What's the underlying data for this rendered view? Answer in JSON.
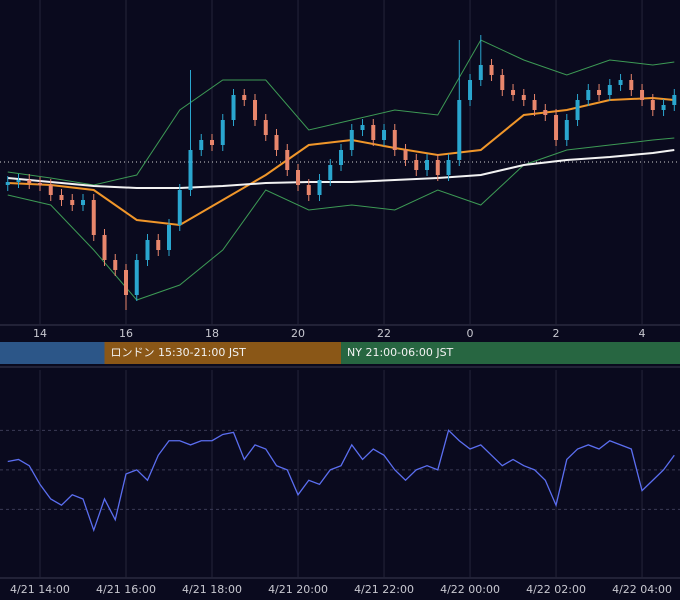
{
  "chart_data": [
    {
      "type": "candlestick",
      "ylim": [
        0,
        325
      ],
      "xlim": [
        -0.72,
        62.53
      ],
      "xticks": [
        {
          "value": 3,
          "label": "14"
        },
        {
          "value": 11,
          "label": "16"
        },
        {
          "value": 19,
          "label": "18"
        },
        {
          "value": 27,
          "label": "20"
        },
        {
          "value": 35,
          "label": "22"
        },
        {
          "value": 43,
          "label": "0"
        },
        {
          "value": 51,
          "label": "2"
        },
        {
          "value": 59,
          "label": "4"
        }
      ],
      "grid": true,
      "up_color": "#2aa6cf",
      "down_color": "#e8866c",
      "open": [
        140,
        143,
        145,
        142,
        140,
        130,
        125,
        120,
        125,
        90,
        65,
        55,
        30,
        65,
        85,
        75,
        100,
        135,
        175,
        185,
        180,
        205,
        230,
        225,
        205,
        190,
        175,
        155,
        140,
        130,
        145,
        160,
        175,
        195,
        200,
        185,
        195,
        175,
        165,
        155,
        165,
        150,
        165,
        225,
        245,
        260,
        250,
        235,
        230,
        225,
        215,
        210,
        185,
        205,
        225,
        235,
        230,
        240,
        245,
        235,
        225,
        215,
        220
      ],
      "high": [
        149,
        151,
        151,
        148,
        146,
        136,
        131,
        131,
        131,
        96,
        71,
        61,
        71,
        91,
        91,
        106,
        141,
        255,
        191,
        191,
        211,
        236,
        236,
        231,
        211,
        196,
        181,
        161,
        146,
        151,
        166,
        181,
        201,
        206,
        206,
        201,
        201,
        181,
        171,
        171,
        171,
        171,
        285,
        251,
        290,
        266,
        256,
        241,
        236,
        231,
        221,
        216,
        211,
        231,
        241,
        241,
        246,
        251,
        251,
        241,
        231,
        226,
        236
      ],
      "low": [
        134,
        137,
        136,
        134,
        124,
        119,
        114,
        114,
        84,
        59,
        49,
        15,
        24,
        59,
        69,
        69,
        94,
        129,
        169,
        174,
        174,
        199,
        219,
        199,
        184,
        169,
        149,
        134,
        124,
        124,
        139,
        154,
        169,
        189,
        179,
        179,
        169,
        159,
        149,
        149,
        144,
        144,
        159,
        219,
        239,
        244,
        229,
        224,
        219,
        209,
        204,
        179,
        179,
        199,
        219,
        224,
        224,
        234,
        229,
        219,
        209,
        209,
        214
      ],
      "close": [
        143,
        145,
        142,
        140,
        130,
        125,
        120,
        125,
        90,
        65,
        55,
        30,
        65,
        85,
        75,
        100,
        135,
        175,
        185,
        180,
        205,
        230,
        225,
        205,
        190,
        175,
        155,
        140,
        130,
        145,
        160,
        175,
        195,
        200,
        185,
        195,
        175,
        165,
        155,
        165,
        150,
        165,
        225,
        245,
        260,
        250,
        235,
        230,
        225,
        215,
        210,
        185,
        205,
        225,
        235,
        230,
        240,
        245,
        235,
        225,
        215,
        220,
        230
      ],
      "overlay_x": [
        0,
        4,
        8,
        12,
        16,
        20,
        24,
        28,
        32,
        36,
        40,
        44,
        48,
        52,
        56,
        60,
        62
      ],
      "overlays": [
        {
          "color": "#3d9a55",
          "values": [
            153,
            147,
            140,
            150,
            215,
            245,
            245,
            195,
            205,
            215,
            210,
            285,
            265,
            250,
            265,
            260,
            263
          ]
        },
        {
          "color": "#3d9a55",
          "values": [
            130,
            120,
            75,
            25,
            40,
            75,
            135,
            115,
            120,
            115,
            135,
            120,
            160,
            175,
            180,
            185,
            187
          ]
        },
        {
          "color": "#f0962a",
          "values": [
            142,
            140,
            135,
            105,
            100,
            125,
            150,
            180,
            185,
            177,
            170,
            175,
            210,
            215,
            225,
            227,
            225
          ]
        },
        {
          "color": "#f2f2f2",
          "values": [
            147,
            143,
            139,
            137,
            137,
            139,
            142,
            143,
            143,
            145,
            147,
            150,
            160,
            165,
            168,
            172,
            175
          ]
        }
      ],
      "hline": 163,
      "sessions": [
        {
          "color": "#2c5688",
          "start": -0.72,
          "end": 9
        },
        {
          "color": "#8a5717",
          "start": 9,
          "end": 31,
          "label": "ロンドン 15:30-21:00 JST"
        },
        {
          "color": "#276641",
          "start": 31,
          "end": 62.53,
          "label": "NY 21:00-06:00 JST"
        }
      ]
    },
    {
      "type": "line",
      "ylim": [
        0,
        100
      ],
      "xlim": [
        -0.72,
        62.53
      ],
      "xticks": [
        {
          "value": 3,
          "label": "4/21 14:00"
        },
        {
          "value": 11,
          "label": "4/21 16:00"
        },
        {
          "value": 19,
          "label": "4/21 18:00"
        },
        {
          "value": 27,
          "label": "4/21 20:00"
        },
        {
          "value": 35,
          "label": "4/21 22:00"
        },
        {
          "value": 43,
          "label": "4/22 00:00"
        },
        {
          "value": 51,
          "label": "4/22 02:00"
        },
        {
          "value": 59,
          "label": "4/22 04:00"
        }
      ],
      "levels": [
        33,
        52,
        71
      ],
      "color": "#5b6ef0",
      "values": [
        56,
        57,
        54,
        45,
        38,
        35,
        40,
        38,
        23,
        38,
        28,
        50,
        52,
        47,
        59,
        66,
        66,
        64,
        66,
        66,
        69,
        70,
        57,
        64,
        62,
        54,
        52,
        40,
        47,
        45,
        52,
        54,
        64,
        57,
        62,
        59,
        52,
        47,
        52,
        54,
        52,
        71,
        66,
        62,
        64,
        59,
        54,
        57,
        54,
        52,
        47,
        35,
        57,
        62,
        64,
        62,
        66,
        64,
        62,
        42,
        47,
        52,
        59
      ]
    }
  ]
}
